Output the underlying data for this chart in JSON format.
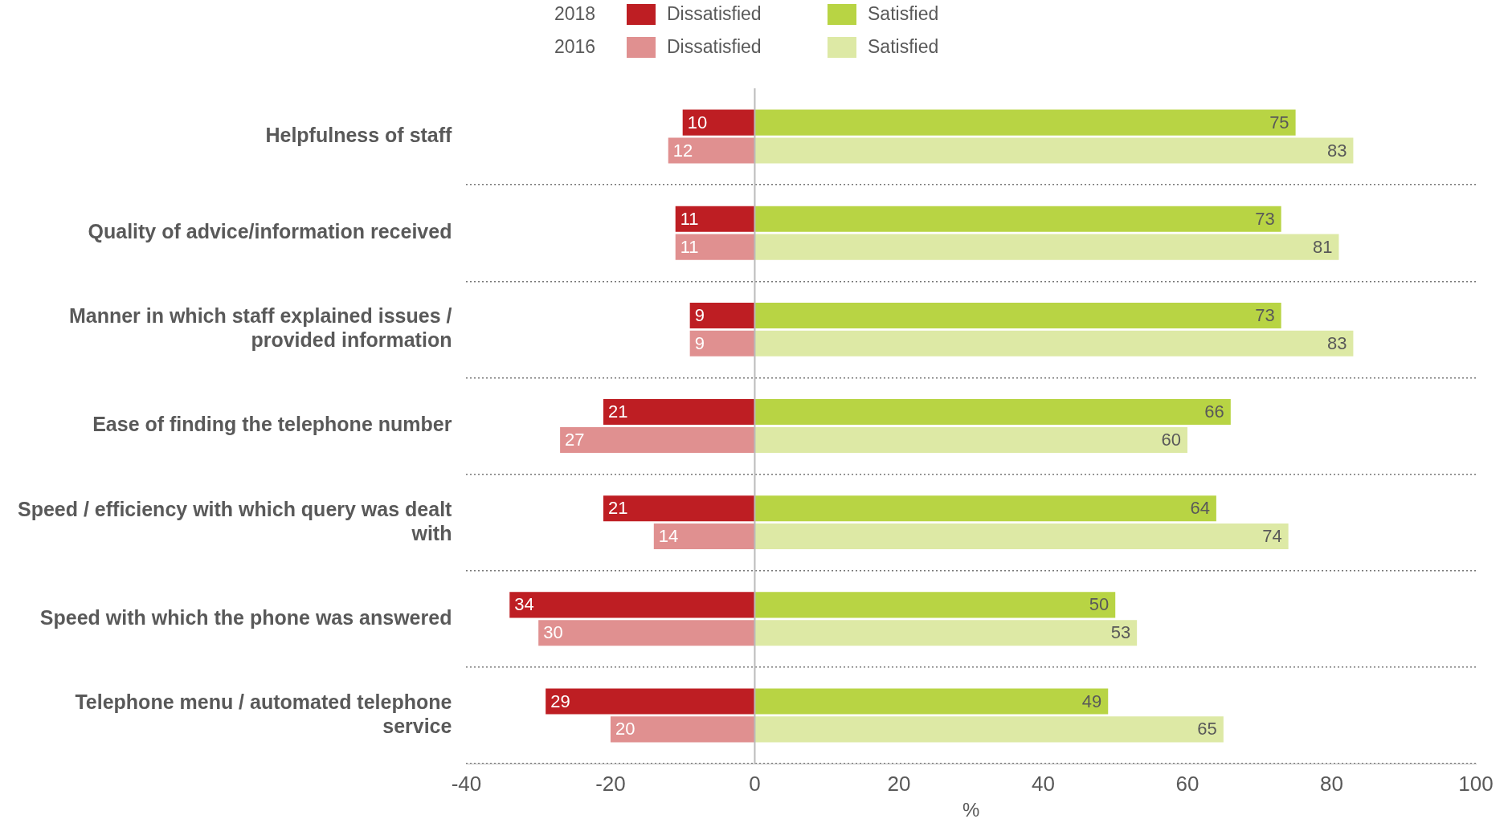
{
  "chart_data": {
    "type": "bar",
    "orientation": "horizontal",
    "xlabel": "%",
    "categories": [
      "Helpfulness of staff",
      "Quality of advice/information received",
      "Manner in which staff explained issues / provided information",
      "Ease of finding the telephone number",
      "Speed / efficiency with which query was dealt with",
      "Speed with which the phone was answered",
      "Telephone menu / automated telephone service"
    ],
    "series": [
      {
        "name": "Dissatisfied",
        "color": "#be1e23",
        "values": [
          10,
          11,
          9,
          21,
          21,
          34,
          29
        ],
        "base": [
          -10,
          -11,
          -9,
          -21,
          -21,
          -34,
          -29
        ]
      },
      {
        "name": "Satisfied",
        "color": "#b8d444",
        "values": [
          75,
          73,
          73,
          66,
          64,
          50,
          49
        ]
      },
      {
        "name": "Dissatisfied",
        "color": "#e09090",
        "values": [
          12,
          11,
          9,
          27,
          14,
          30,
          20
        ],
        "base": [
          -12,
          -11,
          -9,
          -27,
          -14,
          -30,
          -20
        ]
      },
      {
        "name": "Satisfied",
        "color": "#dde9a5",
        "values": [
          83,
          81,
          83,
          60,
          74,
          53,
          65
        ]
      }
    ],
    "annotations": [
      "2018",
      "2016"
    ],
    "xlim": [
      -40,
      100
    ],
    "xticks": [
      -40,
      -20,
      0,
      20,
      40,
      60,
      80,
      100
    ],
    "data_labels": true,
    "grid": "y",
    "legend": "top"
  }
}
